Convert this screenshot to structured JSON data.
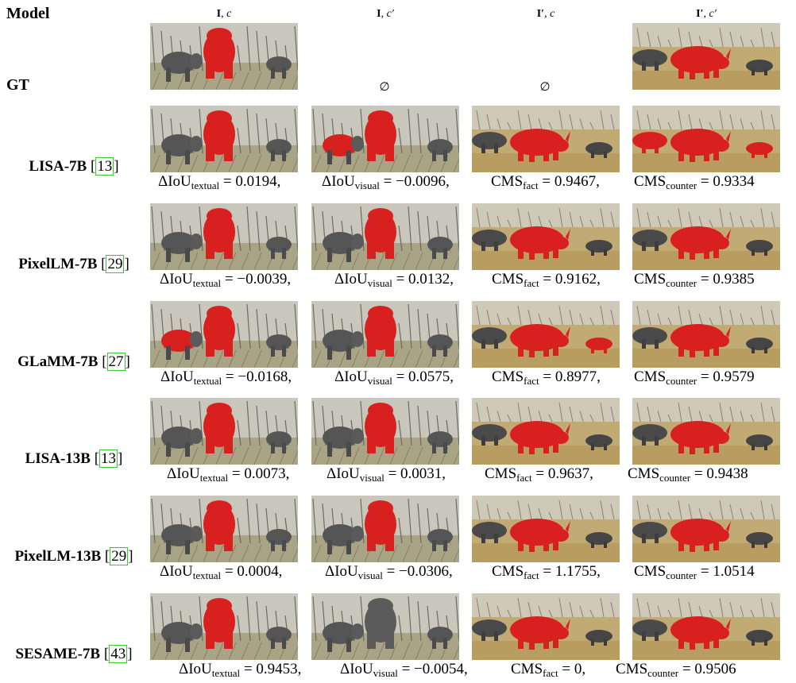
{
  "header": {
    "model_label": "Model",
    "columns": [
      {
        "bold": "I",
        "rest": ", c"
      },
      {
        "bold": "I",
        "rest": ", c′"
      },
      {
        "bold": "I′",
        "rest": ", c"
      },
      {
        "bold": "I′",
        "rest": ", c′"
      }
    ]
  },
  "gt": {
    "label": "GT",
    "empty_symbol": "∅",
    "cells": [
      "elephant-mask",
      "empty",
      "empty",
      "rhino-mask"
    ]
  },
  "rows": [
    {
      "name": "LISA-7B",
      "cite": "13",
      "cells": [
        "elephant-mask",
        "elephant-mask-partial",
        "rhino-mask",
        "rhino-all-mask"
      ],
      "metrics": [
        {
          "base": "ΔIoU",
          "sub": "textual",
          "value": "0.0194,"
        },
        {
          "base": "ΔIoU",
          "sub": "visual",
          "value": "−0.0096,"
        },
        {
          "base": "CMS",
          "sub": "fact",
          "value": "0.9467,"
        },
        {
          "base": "CMS",
          "sub": "counter",
          "value": "0.9334"
        }
      ]
    },
    {
      "name": "PixelLM-7B",
      "cite": "29",
      "cells": [
        "elephant-mask",
        "elephant-mask",
        "rhino-mask",
        "rhino-mask"
      ],
      "metrics": [
        {
          "base": "ΔIoU",
          "sub": "textual",
          "value": "−0.0039,"
        },
        {
          "base": "ΔIoU",
          "sub": "visual",
          "value": "0.0132,"
        },
        {
          "base": "CMS",
          "sub": "fact",
          "value": "0.9162,"
        },
        {
          "base": "CMS",
          "sub": "counter",
          "value": "0.9385"
        }
      ]
    },
    {
      "name": "GLaMM-7B",
      "cite": "27",
      "cells": [
        "elephant-mask-partial",
        "elephant-mask",
        "rhino-mask-partial",
        "rhino-mask"
      ],
      "metrics": [
        {
          "base": "ΔIoU",
          "sub": "textual",
          "value": "−0.0168,"
        },
        {
          "base": "ΔIoU",
          "sub": "visual",
          "value": "0.0575,"
        },
        {
          "base": "CMS",
          "sub": "fact",
          "value": "0.8977,"
        },
        {
          "base": "CMS",
          "sub": "counter",
          "value": "0.9579"
        }
      ]
    },
    {
      "name": "LISA-13B",
      "cite": "13",
      "cells": [
        "elephant-mask",
        "elephant-mask",
        "rhino-mask",
        "rhino-mask"
      ],
      "metrics": [
        {
          "base": "ΔIoU",
          "sub": "textual",
          "value": "0.0073,"
        },
        {
          "base": "ΔIoU",
          "sub": "visual",
          "value": "0.0031,"
        },
        {
          "base": "CMS",
          "sub": "fact",
          "value": "0.9637,"
        },
        {
          "base": "CMS",
          "sub": "counter",
          "value": "0.9438"
        }
      ]
    },
    {
      "name": "PixelLM-13B",
      "cite": "29",
      "cells": [
        "elephant-mask",
        "elephant-mask",
        "rhino-mask",
        "rhino-mask"
      ],
      "metrics": [
        {
          "base": "ΔIoU",
          "sub": "textual",
          "value": "0.0004,"
        },
        {
          "base": "ΔIoU",
          "sub": "visual",
          "value": "−0.0306,"
        },
        {
          "base": "CMS",
          "sub": "fact",
          "value": "1.1755,"
        },
        {
          "base": "CMS",
          "sub": "counter",
          "value": "1.0514"
        }
      ]
    },
    {
      "name": "SESAME-7B",
      "cite": "43",
      "cells": [
        "elephant-mask",
        "elephant-nomask",
        "rhino-mask",
        "rhino-mask"
      ],
      "metrics": [
        {
          "base": "ΔIoU",
          "sub": "textual",
          "value": "0.9453,"
        },
        {
          "base": "ΔIoU",
          "sub": "visual",
          "value": "−0.0054,"
        },
        {
          "base": "CMS",
          "sub": "fact",
          "value": "0,"
        },
        {
          "base": "CMS",
          "sub": "counter",
          "value": "0.9506"
        }
      ]
    }
  ],
  "colors": {
    "mask": "#d8201f",
    "grass": "#b8a77a",
    "sky": "#d6d3c9"
  }
}
